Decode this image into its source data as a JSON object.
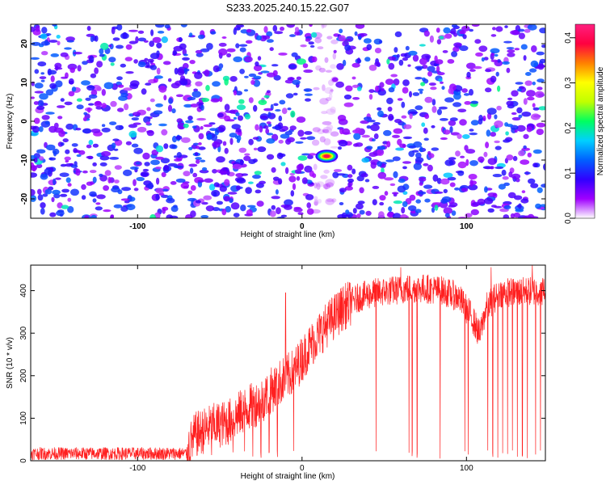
{
  "title": "S233.2025.240.15.22.G07",
  "chart_data": [
    {
      "type": "heatmap",
      "xlabel": "Height of straight line (km)",
      "ylabel": "Frequency (Hz)",
      "xlim": [
        -165,
        148
      ],
      "ylim": [
        -25,
        25
      ],
      "x_ticks": [
        -100,
        0,
        100
      ],
      "y_ticks": [
        -20,
        -10,
        0,
        10,
        20
      ],
      "colorbar": {
        "label": "Normalized spectral amplitude",
        "range": [
          0,
          0.43
        ],
        "ticks": [
          "0.0",
          "0.1",
          "0.2",
          "0.3",
          "0.4"
        ],
        "colors": [
          "#ffffff",
          "#a000ff",
          "#3000ff",
          "#0060ff",
          "#00d0ff",
          "#00ff60",
          "#c0ff00",
          "#ffff00",
          "#ff8000",
          "#ff0040",
          "#ff2080"
        ]
      },
      "peak": {
        "x": 15,
        "y": -9,
        "value": 0.43
      },
      "noise_blob_count": 1500,
      "quiet_band_x": [
        8,
        20
      ]
    },
    {
      "type": "line",
      "xlabel": "Height of straight line (km)",
      "ylabel": "SNR (10 * v/v)",
      "xlim": [
        -165,
        148
      ],
      "ylim": [
        0,
        460
      ],
      "x_ticks": [
        -100,
        0,
        100
      ],
      "y_ticks": [
        0,
        100,
        200,
        300,
        400
      ],
      "series_color": "#ff2020",
      "profile": [
        [
          -165,
          15
        ],
        [
          -70,
          25
        ],
        [
          -65,
          60
        ],
        [
          -55,
          80
        ],
        [
          -45,
          90
        ],
        [
          -35,
          120
        ],
        [
          -25,
          140
        ],
        [
          -15,
          180
        ],
        [
          -5,
          210
        ],
        [
          5,
          270
        ],
        [
          15,
          320
        ],
        [
          25,
          360
        ],
        [
          35,
          385
        ],
        [
          45,
          395
        ],
        [
          55,
          400
        ],
        [
          65,
          405
        ],
        [
          75,
          405
        ],
        [
          85,
          400
        ],
        [
          95,
          385
        ],
        [
          103,
          340
        ],
        [
          108,
          295
        ],
        [
          112,
          360
        ],
        [
          120,
          395
        ],
        [
          148,
          400
        ]
      ],
      "dropouts": [
        -55,
        -42,
        -35,
        -30,
        -25,
        -20,
        -15,
        -10,
        -5,
        45,
        65,
        67,
        70,
        84,
        99,
        101,
        113,
        116,
        119,
        122,
        125,
        128,
        131,
        134,
        137,
        140,
        142,
        145
      ],
      "spikes": [
        [
          -10,
          395
        ],
        [
          60,
          455
        ],
        [
          115,
          455
        ],
        [
          140,
          460
        ]
      ],
      "sample_count": 2000
    }
  ]
}
